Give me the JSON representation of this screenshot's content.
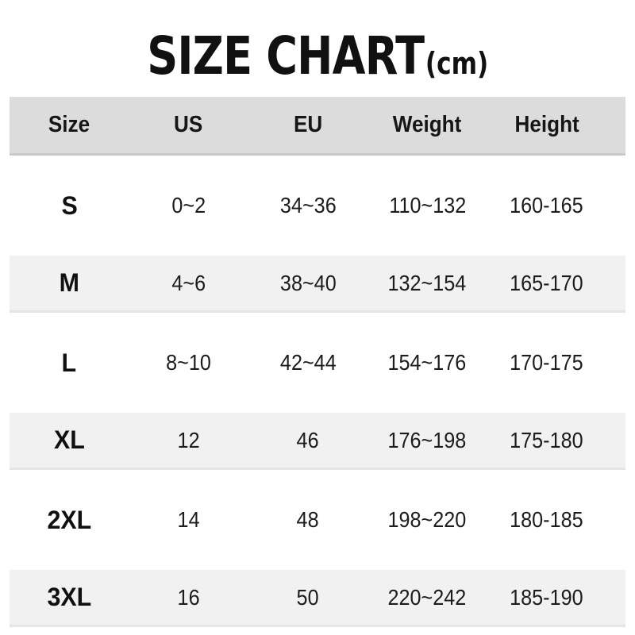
{
  "title": {
    "text": "SIZE CHART",
    "unit": "(cm)"
  },
  "colors": {
    "background": "#ffffff",
    "header_band": "#dcdcdc",
    "stripe_band": "#f1f1f1",
    "text": "#111111"
  },
  "table": {
    "headers": [
      "Size",
      "US",
      "EU",
      "Weight",
      "Height"
    ],
    "rows": [
      {
        "size": "S",
        "us": "0~2",
        "eu": "34~36",
        "weight": "110~132",
        "height": "160-165"
      },
      {
        "size": "M",
        "us": "4~6",
        "eu": "38~40",
        "weight": "132~154",
        "height": "165-170"
      },
      {
        "size": "L",
        "us": "8~10",
        "eu": "42~44",
        "weight": "154~176",
        "height": "170-175"
      },
      {
        "size": "XL",
        "us": "12",
        "eu": "46",
        "weight": "176~198",
        "height": "175-180"
      },
      {
        "size": "2XL",
        "us": "14",
        "eu": "48",
        "weight": "198~220",
        "height": "180-185"
      },
      {
        "size": "3XL",
        "us": "16",
        "eu": "50",
        "weight": "220~242",
        "height": "185-190"
      }
    ]
  },
  "chart_data": {
    "type": "table",
    "title": "SIZE CHART(cm)",
    "columns": [
      "Size",
      "US",
      "EU",
      "Weight",
      "Height"
    ],
    "rows": [
      [
        "S",
        "0~2",
        "34~36",
        "110~132",
        "160-165"
      ],
      [
        "M",
        "4~6",
        "38~40",
        "132~154",
        "165-170"
      ],
      [
        "L",
        "8~10",
        "42~44",
        "154~176",
        "170-175"
      ],
      [
        "XL",
        "12",
        "46",
        "176~198",
        "175-180"
      ],
      [
        "2XL",
        "14",
        "48",
        "198~220",
        "180-185"
      ],
      [
        "3XL",
        "16",
        "50",
        "220~242",
        "185-190"
      ]
    ],
    "layout_hints": {
      "header_background": "#dcdcdc",
      "striped_rows": [
        "M",
        "XL",
        "3XL"
      ],
      "stripe_background": "#f1f1f1",
      "grid": "off"
    }
  }
}
